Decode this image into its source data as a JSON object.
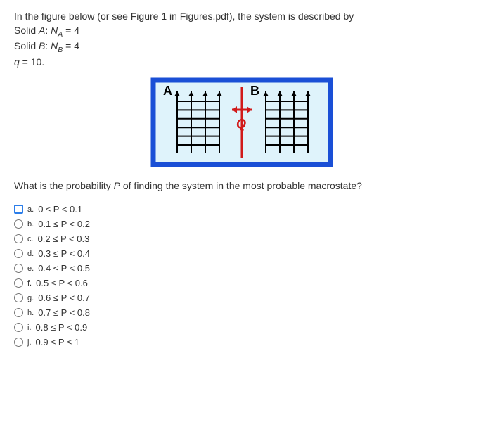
{
  "question": {
    "line1_prefix": "In the figure below (or see Figure 1 in Figures.pdf), the system is described by",
    "solidA_label": "Solid ",
    "solidA_var": "A",
    "solidA_eq_pre": ": ",
    "solidA_eq_var": "N",
    "solidA_eq_sub": "A",
    "solidA_eq_rest": " = 4",
    "solidB_label": "Solid ",
    "solidB_var": "B",
    "solidB_eq_pre": ": ",
    "solidB_eq_var": "N",
    "solidB_eq_sub": "B",
    "solidB_eq_rest": " = 4",
    "q_line_var": "q",
    "q_line_rest": " = 10."
  },
  "figure": {
    "labelA": "A",
    "labelB": "B",
    "q_label": "Q",
    "outer_border": "#1a4fd6",
    "bg": "#dff3fb",
    "arrow_color": "#d11a1a",
    "oscillator_color": "#000000",
    "oscillators_per_side": 4,
    "rungs": 6
  },
  "prompt": {
    "pre": "What is the probability ",
    "P": "P",
    "post": " of finding the system in the most probable macrostate?"
  },
  "options": [
    {
      "letter": "a.",
      "text": "0 ≤ P < 0.1",
      "shape": "square"
    },
    {
      "letter": "b.",
      "text": "0.1 ≤ P < 0.2",
      "shape": "circle"
    },
    {
      "letter": "c.",
      "text": "0.2 ≤ P < 0.3",
      "shape": "circle"
    },
    {
      "letter": "d.",
      "text": "0.3 ≤ P < 0.4",
      "shape": "circle"
    },
    {
      "letter": "e.",
      "text": "0.4 ≤ P < 0.5",
      "shape": "circle"
    },
    {
      "letter": "f.",
      "text": "0.5 ≤ P < 0.6",
      "shape": "circle"
    },
    {
      "letter": "g.",
      "text": "0.6 ≤ P < 0.7",
      "shape": "circle"
    },
    {
      "letter": "h.",
      "text": "0.7 ≤ P < 0.8",
      "shape": "circle"
    },
    {
      "letter": "i.",
      "text": "0.8 ≤ P < 0.9",
      "shape": "circle"
    },
    {
      "letter": "j.",
      "text": "0.9 ≤ P ≤ 1",
      "shape": "circle"
    }
  ]
}
